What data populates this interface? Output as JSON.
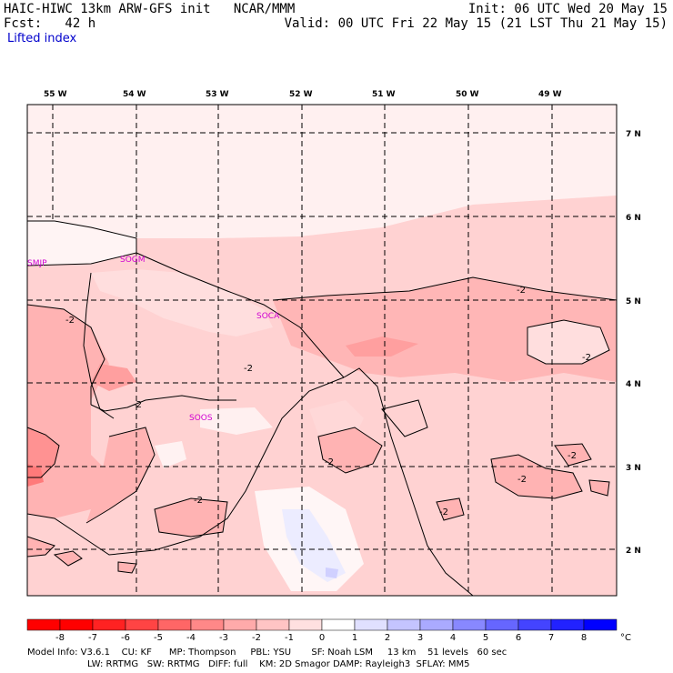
{
  "header": {
    "title_line": "HAIC-HIWC 13km ARW-GFS init   NCAR/MMM",
    "fcst_line": "Fcst:   42 h",
    "field": "Lifted index",
    "init_line": "Init: 06 UTC Wed 20 May 15",
    "valid_line": "Valid: 00 UTC Fri 22 May 15 (21 LST Thu 21 May 15)"
  },
  "lon_labels": [
    "55 W",
    "54 W",
    "53 W",
    "52 W",
    "51 W",
    "50 W",
    "49 W"
  ],
  "lat_labels": [
    "7 N",
    "6 N",
    "5 N",
    "4 N",
    "3 N",
    "2 N"
  ],
  "stations": [
    "SMJP",
    "SOGM",
    "SOCA",
    "SOOS"
  ],
  "contour_label": "-2",
  "colorbar": {
    "ticks": [
      "-8",
      "-7",
      "-6",
      "-5",
      "-4",
      "-3",
      "-2",
      "-1",
      "0",
      "1",
      "2",
      "3",
      "4",
      "5",
      "6",
      "7",
      "8"
    ],
    "unit": "°C",
    "colors": [
      "#ff0000",
      "#ff2222",
      "#ff4444",
      "#ff6666",
      "#ff8888",
      "#ffaaaa",
      "#ffc4c4",
      "#ffe0e0",
      "#ffffff",
      "#e0e0ff",
      "#c4c4ff",
      "#aaaaff",
      "#8888ff",
      "#6666ff",
      "#4444ff",
      "#2222ff",
      "#0000ff"
    ]
  },
  "footer": {
    "line1": "Model Info: V3.6.1    CU: KF      MP: Thompson     PBL: YSU       SF: Noah LSM     13 km    51 levels   60 sec",
    "line2": "LW: RRTMG   SW: RRTMG   DIFF: full    KM: 2D Smagor DAMP: Rayleigh3  SFLAY: MM5"
  }
}
